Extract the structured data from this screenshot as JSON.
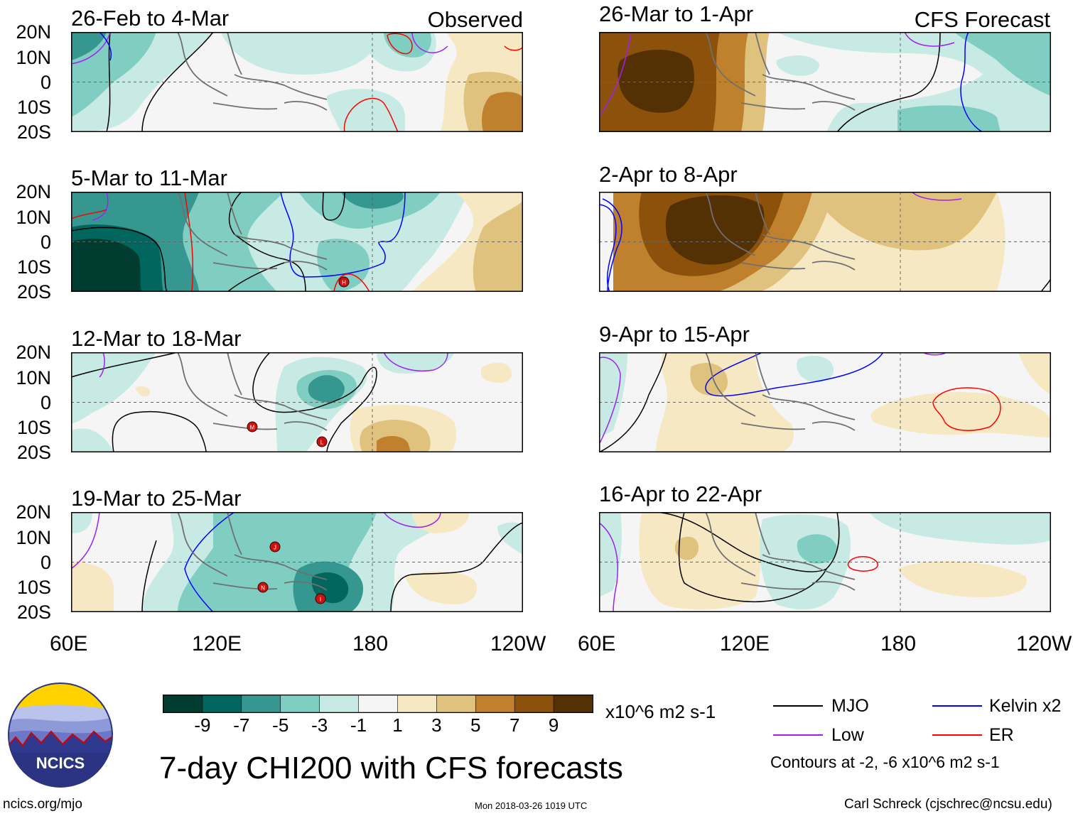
{
  "header": {
    "observed_label": "Observed",
    "forecast_label": "CFS Forecast"
  },
  "panels": [
    {
      "title": "26-Feb to 4-Mar",
      "group": "observed"
    },
    {
      "title": "5-Mar to 11-Mar",
      "group": "observed"
    },
    {
      "title": "12-Mar to 18-Mar",
      "group": "observed"
    },
    {
      "title": "19-Mar to 25-Mar",
      "group": "observed"
    },
    {
      "title": "26-Mar to 1-Apr",
      "group": "forecast"
    },
    {
      "title": "2-Apr to 8-Apr",
      "group": "forecast"
    },
    {
      "title": "9-Apr to 15-Apr",
      "group": "forecast"
    },
    {
      "title": "16-Apr to 22-Apr",
      "group": "forecast"
    }
  ],
  "axes": {
    "lat_ticks": [
      "20N",
      "10N",
      "0",
      "10S",
      "20S"
    ],
    "lon_ticks": [
      "60E",
      "120E",
      "180",
      "120W"
    ]
  },
  "chart_data": {
    "type": "heatmap",
    "title": "7-day CHI200 with CFS forecasts",
    "variable": "CHI200 anomaly",
    "units": "x10^6 m2 s-1",
    "lon_range": [
      "60E",
      "120W"
    ],
    "lat_range": [
      "20S",
      "20N"
    ],
    "colorbar": {
      "ticks": [
        -9,
        -7,
        -5,
        -3,
        -1,
        1,
        3,
        5,
        7,
        9
      ],
      "colors": [
        "#003c30",
        "#01665e",
        "#35978f",
        "#80cdc1",
        "#c7eae5",
        "#f5f5f5",
        "#f6e8c3",
        "#dfc27d",
        "#bf812d",
        "#8c510a",
        "#543005"
      ]
    },
    "contour_legend": [
      {
        "label": "MJO",
        "color": "#000000"
      },
      {
        "label": "Kelvin x2",
        "color": "#0000ff"
      },
      {
        "label": "Low",
        "color": "#a020f0"
      },
      {
        "label": "ER",
        "color": "#ff0000"
      }
    ],
    "contour_note": "Contours at -2, -6 x10^6 m2 s-1",
    "storm_markers": [
      {
        "panel": "5-Mar to 11-Mar",
        "label": "H"
      },
      {
        "panel": "12-Mar to 18-Mar",
        "label": "M"
      },
      {
        "panel": "12-Mar to 18-Mar",
        "label": "L"
      },
      {
        "panel": "19-Mar to 25-Mar",
        "label": "J"
      },
      {
        "panel": "19-Mar to 25-Mar",
        "label": "N"
      },
      {
        "panel": "19-Mar to 25-Mar",
        "label": "I"
      }
    ]
  },
  "logo": {
    "text": "NCICS"
  },
  "footer": {
    "url": "ncics.org/mjo",
    "timestamp": "Mon 2018-03-26 1019 UTC",
    "author": "Carl Schreck (cjschrec@ncsu.edu)"
  }
}
